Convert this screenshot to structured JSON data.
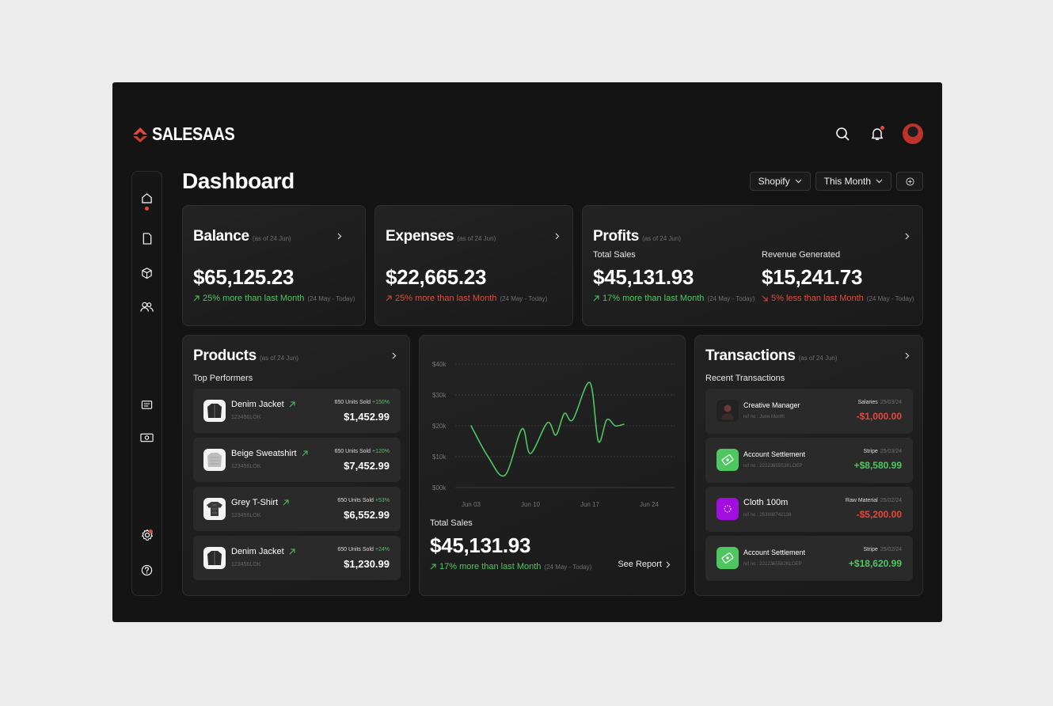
{
  "brand": {
    "name": "SALESAAS",
    "accent": "#e5483a"
  },
  "colors": {
    "up": "#4ec760",
    "down": "#e5483a"
  },
  "topbar": {
    "icons": [
      "search-icon",
      "bell-icon",
      "avatar"
    ]
  },
  "sidebar": {
    "items": [
      "home-icon",
      "document-icon",
      "box-icon",
      "users-icon",
      "message-icon",
      "money-icon",
      "settings-icon",
      "help-icon"
    ],
    "active": "home-icon"
  },
  "page": {
    "title": "Dashboard"
  },
  "controls": {
    "store": "Shopify",
    "period": "This Month"
  },
  "balance": {
    "title": "Balance",
    "asof": "(as of 24 Jun)",
    "value": "$65,125.23",
    "change": "25% more than last Month",
    "range": "(24 May - Today)"
  },
  "expenses": {
    "title": "Expenses",
    "asof": "(as of 24 Jun)",
    "value": "$22,665.23",
    "change": "25% more than last Month",
    "range": "(24 May - Today)"
  },
  "profits": {
    "title": "Profits",
    "asof": "(as of 24 Jun)",
    "total_sales": {
      "label": "Total Sales",
      "value": "$45,131.93",
      "change": "17% more than last Month",
      "range": "(24 May - Today)"
    },
    "revenue": {
      "label": "Revenue Generated",
      "value": "$15,241.73",
      "change": "5% less than last Month",
      "range": "(24 May - Today)"
    }
  },
  "products": {
    "title": "Products",
    "asof": "(as of 24 Jun)",
    "section": "Top Performers",
    "items": [
      {
        "name": "Denim Jacket",
        "sku": "123456LOK",
        "units": "650 Units Sold",
        "pct": "+150%",
        "price": "$1,452.99"
      },
      {
        "name": "Beige Sweatshirt",
        "sku": "123456LOK",
        "units": "650 Units Sold",
        "pct": "+120%",
        "price": "$7,452.99"
      },
      {
        "name": "Grey T-Shirt",
        "sku": "123456LOK",
        "units": "650 Units Sold",
        "pct": "+53%",
        "price": "$6,552.99"
      },
      {
        "name": "Denim Jacket",
        "sku": "123456LOK",
        "units": "650 Units Sold",
        "pct": "+24%",
        "price": "$1,230.99"
      }
    ]
  },
  "sales_chart": {
    "label": "Total Sales",
    "value": "$45,131.93",
    "change": "17% more than last Month",
    "range": "(24 May - Today)",
    "link": "See Report"
  },
  "chart_data": {
    "type": "line",
    "x": [
      "Jun 03",
      "Jun 05",
      "Jun 07",
      "Jun 09",
      "Jun 10",
      "Jun 12",
      "Jun 13",
      "Jun 14",
      "Jun 15",
      "Jun 17",
      "Jun 18",
      "Jun 19",
      "Jun 20",
      "Jun 21"
    ],
    "tick_labels_x": [
      "Jun 03",
      "Jun 10",
      "Jun 17",
      "Jun 24"
    ],
    "tick_labels_y": [
      "$40k",
      "$30k",
      "$20k",
      "$10k",
      "$00k"
    ],
    "series": [
      {
        "values": [
          20000,
          10000,
          4000,
          19000,
          11000,
          21000,
          17000,
          24000,
          22000,
          34000,
          15000,
          22000,
          20000,
          20500
        ]
      }
    ],
    "ylim": [
      0,
      40000
    ],
    "color": "#4ec760",
    "grid": true
  },
  "transactions": {
    "title": "Transactions",
    "asof": "(as of 24 Jun)",
    "section": "Recent Transactions",
    "items": [
      {
        "name": "Creative Manager",
        "ref": "ref no : June Month",
        "category": "Salaries",
        "date": "25/03/24",
        "amount": "-$1,000.00",
        "type": "down",
        "icon": "person-photo",
        "color": "#222222"
      },
      {
        "name": "Account Settlement",
        "ref": "ref no : 22223655S3KLOEP",
        "category": "Stripe",
        "date": "25/03/24",
        "amount": "+$8,580.99",
        "type": "up",
        "icon": "money-icon",
        "color": "#4ec760"
      },
      {
        "name": "Cloth 100m",
        "ref": "ref no : 253698742136",
        "category": "Raw Material",
        "date": "25/02/24",
        "amount": "-$5,200.00",
        "type": "down",
        "icon": "fabric-icon",
        "color": "#a20ee0"
      },
      {
        "name": "Account Settlement",
        "ref": "ref no : 2222365582KLOEP",
        "category": "Stripe",
        "date": "25/02/24",
        "amount": "+$18,620.99",
        "type": "up",
        "icon": "money-icon",
        "color": "#4ec760"
      }
    ]
  }
}
